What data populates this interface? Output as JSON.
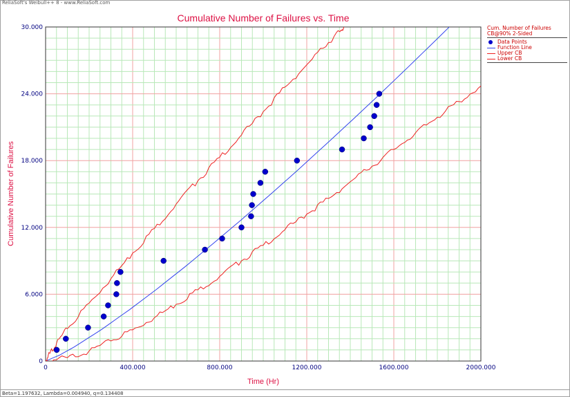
{
  "window": {
    "header": "ReliaSoft's Weibull++ 8 - www.ReliaSoft.com",
    "footer": "Beta=1.197632, Lambda=0.004940, q=0.134408"
  },
  "colors": {
    "title": "#dd1144",
    "axis_label": "#dd1144",
    "tick_label": "#000080",
    "data_points": "#0000cc",
    "function_line": "#3344ee",
    "confidence_bounds": "#ee2222",
    "major_grid": "#f0a0a0",
    "minor_grid": "#b8e8b8"
  },
  "legend": {
    "title_line1": "Cum. Number of Failures",
    "title_line2": "CB@90% 2-Sided",
    "entries": [
      {
        "label": "Data Points",
        "symbol": "dot",
        "color": "#0000cc"
      },
      {
        "label": "Function Line",
        "symbol": "line",
        "color": "#3344ee"
      },
      {
        "label": "Upper CB",
        "symbol": "line",
        "color": "#ee2222"
      },
      {
        "label": "Lower CB",
        "symbol": "line",
        "color": "#ee2222"
      }
    ]
  },
  "chart_data": {
    "type": "line",
    "title": "Cumulative Number of Failures vs. Time",
    "xlabel": "Time (Hr)",
    "ylabel": "Cumulative Number of Failures",
    "xlim": [
      0,
      2000
    ],
    "ylim": [
      0,
      30
    ],
    "x_ticks": [
      "0",
      "400.000",
      "800.000",
      "1200.000",
      "1600.000",
      "2000.000"
    ],
    "y_ticks": [
      "0",
      "6.000",
      "12.000",
      "18.000",
      "24.000",
      "30.000"
    ],
    "x_tick_values": [
      0,
      400,
      800,
      1200,
      1600,
      2000
    ],
    "y_tick_values": [
      0,
      6,
      12,
      18,
      24,
      30
    ],
    "grid": true,
    "legend_position": "right",
    "model": {
      "beta": 1.197632,
      "lambda": 0.00494
    },
    "series": [
      {
        "name": "Data Points",
        "kind": "scatter",
        "points": [
          [
            51,
            1
          ],
          [
            93,
            2
          ],
          [
            195,
            3
          ],
          [
            267,
            4
          ],
          [
            287,
            5
          ],
          [
            325,
            6
          ],
          [
            328,
            7
          ],
          [
            344,
            8
          ],
          [
            542,
            9
          ],
          [
            732,
            10
          ],
          [
            811,
            11
          ],
          [
            900,
            12
          ],
          [
            944,
            13
          ],
          [
            948,
            14
          ],
          [
            954,
            15
          ],
          [
            987,
            16
          ],
          [
            1009,
            17
          ],
          [
            1155,
            18
          ],
          [
            1362,
            19
          ],
          [
            1462,
            20
          ],
          [
            1491,
            21
          ],
          [
            1510,
            22
          ],
          [
            1521,
            23
          ],
          [
            1533,
            24
          ]
        ]
      },
      {
        "name": "Function Line",
        "kind": "line",
        "points": [
          [
            0,
            0
          ],
          [
            50,
            0.53
          ],
          [
            100,
            1.23
          ],
          [
            200,
            2.83
          ],
          [
            300,
            4.61
          ],
          [
            400,
            6.5
          ],
          [
            500,
            8.49
          ],
          [
            600,
            10.56
          ],
          [
            700,
            12.68
          ],
          [
            800,
            14.87
          ],
          [
            900,
            17.1
          ],
          [
            1000,
            19.39
          ],
          [
            1100,
            21.71
          ],
          [
            1200,
            24.07
          ],
          [
            1300,
            26.47
          ],
          [
            1400,
            28.91
          ],
          [
            1450,
            30.14
          ]
        ],
        "x_scale": 1.2843
      },
      {
        "name": "Upper CB",
        "kind": "line",
        "points": [
          [
            0,
            0
          ],
          [
            20,
            0.7
          ],
          [
            50,
            1.6
          ],
          [
            100,
            2.9
          ],
          [
            200,
            5.2
          ],
          [
            300,
            7.4
          ],
          [
            400,
            9.7
          ],
          [
            500,
            11.9
          ],
          [
            600,
            14.1
          ],
          [
            700,
            16.2
          ],
          [
            800,
            18.3
          ],
          [
            900,
            20.3
          ],
          [
            1000,
            22.4
          ],
          [
            1100,
            24.6
          ],
          [
            1200,
            26.6
          ],
          [
            1300,
            28.6
          ],
          [
            1350,
            29.6
          ],
          [
            1370,
            30.0
          ]
        ]
      },
      {
        "name": "Lower CB",
        "kind": "line",
        "points": [
          [
            0,
            0
          ],
          [
            100,
            0.3
          ],
          [
            200,
            0.9
          ],
          [
            300,
            1.8
          ],
          [
            400,
            2.8
          ],
          [
            500,
            3.9
          ],
          [
            600,
            5.1
          ],
          [
            700,
            6.4
          ],
          [
            800,
            7.6
          ],
          [
            900,
            9.0
          ],
          [
            1000,
            10.4
          ],
          [
            1100,
            11.8
          ],
          [
            1200,
            13.2
          ],
          [
            1300,
            14.6
          ],
          [
            1400,
            16.1
          ],
          [
            1500,
            17.5
          ],
          [
            1600,
            19.0
          ],
          [
            1700,
            20.5
          ],
          [
            1800,
            21.9
          ],
          [
            1900,
            23.3
          ],
          [
            2000,
            24.7
          ]
        ]
      }
    ]
  }
}
